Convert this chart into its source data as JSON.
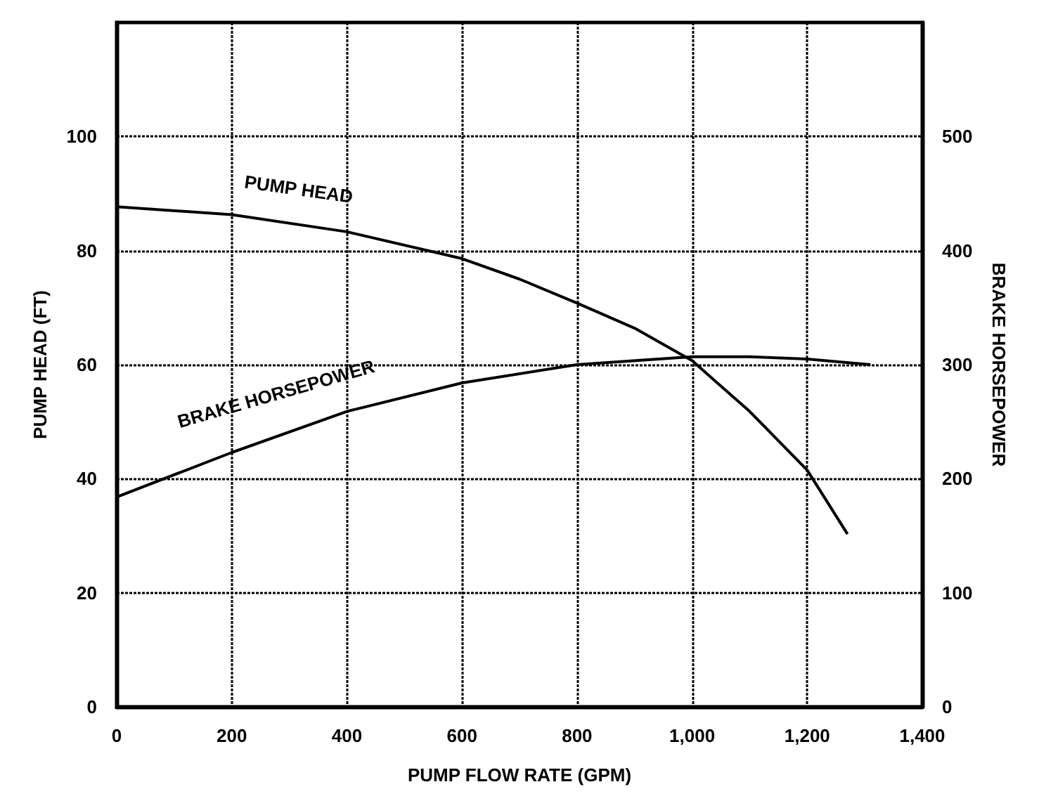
{
  "chart_data": {
    "type": "line",
    "xlabel": "PUMP FLOW RATE (GPM)",
    "ylabel": "PUMP HEAD (FT)",
    "y2label": "BRAKE HORSEPOWER",
    "series": [
      {
        "name": "PUMP HEAD",
        "color": "#000000",
        "x": [
          0,
          200,
          400,
          600,
          700,
          800,
          900,
          1000,
          1100,
          1200,
          1270
        ],
        "values": [
          87.7,
          86.3,
          83.3,
          78.6,
          75,
          70.8,
          66.4,
          60.7,
          51.8,
          41.5,
          30.3
        ]
      },
      {
        "name": "BRAKE HORSEPOWER",
        "color": "#000000",
        "axis": "y2",
        "x": [
          0,
          200,
          400,
          600,
          800,
          1000,
          1100,
          1200,
          1310
        ],
        "values": [
          184,
          223,
          259,
          284,
          300,
          307,
          307,
          305,
          300
        ]
      }
    ],
    "xlim": [
      0,
      1400
    ],
    "xticks": [
      0,
      200,
      400,
      600,
      800,
      {
        "value": 1000,
        "label": "1,000"
      },
      {
        "value": 1200,
        "label": "1,200"
      },
      {
        "value": 1400,
        "label": "1,400"
      }
    ],
    "ylim": [
      0,
      120
    ],
    "yticks": [
      0,
      20,
      40,
      60,
      80,
      100
    ],
    "y2lim": [
      0,
      600
    ],
    "y2ticks": [
      0,
      100,
      200,
      300,
      400,
      500
    ],
    "grid": true,
    "marker": "none",
    "line_style": "solid",
    "legend": false
  }
}
